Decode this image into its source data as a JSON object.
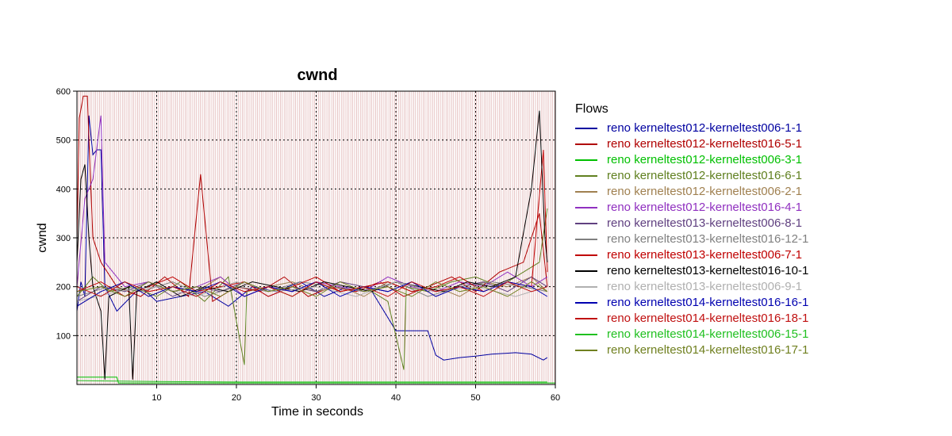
{
  "chart_data": {
    "type": "line",
    "title": "cwnd",
    "xlabel": "Time in seconds",
    "ylabel": "cwnd",
    "xlim": [
      0,
      60
    ],
    "ylim": [
      0,
      600
    ],
    "x_ticks": [
      10,
      20,
      30,
      40,
      50,
      60
    ],
    "y_ticks": [
      100,
      200,
      300,
      400,
      500,
      600
    ],
    "grid": true,
    "legend_title": "Flows",
    "legend_position": "right",
    "series": [
      {
        "name": "reno kerneltest012-kerneltest006-1-1",
        "color": "#0000a0",
        "points": [
          [
            0,
            150
          ],
          [
            0.5,
            210
          ],
          [
            1,
            180
          ],
          [
            1.5,
            550
          ],
          [
            2,
            470
          ],
          [
            2.5,
            480
          ],
          [
            3,
            480
          ],
          [
            3.5,
            200
          ],
          [
            5,
            150
          ],
          [
            8,
            200
          ],
          [
            10,
            170
          ],
          [
            13,
            180
          ],
          [
            16,
            190
          ],
          [
            19,
            160
          ],
          [
            22,
            200
          ],
          [
            25,
            190
          ],
          [
            28,
            210
          ],
          [
            31,
            180
          ],
          [
            34,
            200
          ],
          [
            37,
            190
          ],
          [
            40,
            110
          ],
          [
            42,
            110
          ],
          [
            44,
            110
          ],
          [
            45,
            60
          ],
          [
            46,
            50
          ],
          [
            48,
            55
          ],
          [
            50,
            58
          ],
          [
            52,
            62
          ],
          [
            55,
            65
          ],
          [
            57,
            62
          ],
          [
            58.5,
            50
          ],
          [
            59,
            55
          ]
        ]
      },
      {
        "name": "reno kerneltest012-kerneltest016-5-1",
        "color": "#b00000",
        "points": [
          [
            0,
            300
          ],
          [
            0.3,
            545
          ],
          [
            0.8,
            590
          ],
          [
            1.3,
            590
          ],
          [
            1.5,
            500
          ],
          [
            2,
            300
          ],
          [
            3,
            250
          ],
          [
            5,
            200
          ],
          [
            8,
            180
          ],
          [
            11,
            220
          ],
          [
            14,
            180
          ],
          [
            15.5,
            430
          ],
          [
            17,
            170
          ],
          [
            20,
            200
          ],
          [
            23,
            190
          ],
          [
            26,
            220
          ],
          [
            29,
            180
          ],
          [
            32,
            200
          ],
          [
            35,
            190
          ],
          [
            38,
            210
          ],
          [
            41,
            180
          ],
          [
            44,
            200
          ],
          [
            47,
            220
          ],
          [
            50,
            190
          ],
          [
            53,
            230
          ],
          [
            56,
            250
          ],
          [
            58,
            350
          ],
          [
            59,
            200
          ]
        ]
      },
      {
        "name": "reno kerneltest012-kerneltest006-3-1",
        "color": "#00c000",
        "points": [
          [
            0,
            15
          ],
          [
            5,
            15
          ],
          [
            5.2,
            3
          ],
          [
            60,
            3
          ]
        ]
      },
      {
        "name": "reno kerneltest012-kerneltest016-6-1",
        "color": "#608020",
        "points": [
          [
            0,
            180
          ],
          [
            2,
            220
          ],
          [
            4,
            190
          ],
          [
            7,
            200
          ],
          [
            10,
            180
          ],
          [
            13,
            210
          ],
          [
            16,
            170
          ],
          [
            19,
            220
          ],
          [
            21,
            40
          ],
          [
            21.3,
            190
          ],
          [
            24,
            200
          ],
          [
            27,
            180
          ],
          [
            30,
            210
          ],
          [
            33,
            190
          ],
          [
            36,
            200
          ],
          [
            39,
            170
          ],
          [
            41,
            30
          ],
          [
            41.3,
            200
          ],
          [
            44,
            190
          ],
          [
            47,
            210
          ],
          [
            50,
            220
          ],
          [
            53,
            200
          ],
          [
            56,
            230
          ],
          [
            58,
            250
          ],
          [
            59,
            360
          ]
        ]
      },
      {
        "name": "reno kerneltest012-kerneltest006-2-1",
        "color": "#a08050",
        "points": [
          [
            0,
            160
          ],
          [
            3,
            190
          ],
          [
            6,
            210
          ],
          [
            9,
            180
          ],
          [
            12,
            200
          ],
          [
            15,
            190
          ],
          [
            18,
            220
          ],
          [
            21,
            180
          ],
          [
            24,
            200
          ],
          [
            27,
            210
          ],
          [
            30,
            190
          ],
          [
            33,
            200
          ],
          [
            36,
            180
          ],
          [
            39,
            210
          ],
          [
            42,
            190
          ],
          [
            45,
            200
          ],
          [
            48,
            180
          ],
          [
            51,
            210
          ],
          [
            54,
            200
          ],
          [
            57,
            220
          ],
          [
            59,
            190
          ]
        ]
      },
      {
        "name": "reno kerneltest012-kerneltest016-4-1",
        "color": "#9030c0",
        "points": [
          [
            0,
            200
          ],
          [
            1,
            380
          ],
          [
            2,
            420
          ],
          [
            3,
            550
          ],
          [
            3.5,
            250
          ],
          [
            6,
            200
          ],
          [
            9,
            210
          ],
          [
            12,
            190
          ],
          [
            15,
            200
          ],
          [
            18,
            220
          ],
          [
            21,
            180
          ],
          [
            24,
            200
          ],
          [
            27,
            190
          ],
          [
            30,
            210
          ],
          [
            33,
            200
          ],
          [
            36,
            190
          ],
          [
            39,
            220
          ],
          [
            42,
            200
          ],
          [
            45,
            190
          ],
          [
            48,
            210
          ],
          [
            51,
            200
          ],
          [
            54,
            230
          ],
          [
            57,
            200
          ],
          [
            59,
            220
          ]
        ]
      },
      {
        "name": "reno kerneltest013-kerneltest006-8-1",
        "color": "#604080",
        "points": [
          [
            0,
            170
          ],
          [
            3,
            200
          ],
          [
            6,
            190
          ],
          [
            9,
            210
          ],
          [
            12,
            180
          ],
          [
            15,
            200
          ],
          [
            18,
            190
          ],
          [
            21,
            210
          ],
          [
            24,
            180
          ],
          [
            27,
            200
          ],
          [
            30,
            190
          ],
          [
            33,
            210
          ],
          [
            36,
            200
          ],
          [
            39,
            190
          ],
          [
            42,
            210
          ],
          [
            45,
            180
          ],
          [
            48,
            200
          ],
          [
            51,
            210
          ],
          [
            54,
            190
          ],
          [
            57,
            220
          ],
          [
            59,
            200
          ]
        ]
      },
      {
        "name": "reno kerneltest013-kerneltest016-12-1",
        "color": "#808080",
        "points": [
          [
            0,
            180
          ],
          [
            4,
            200
          ],
          [
            8,
            190
          ],
          [
            12,
            210
          ],
          [
            16,
            180
          ],
          [
            20,
            200
          ],
          [
            24,
            190
          ],
          [
            28,
            210
          ],
          [
            32,
            200
          ],
          [
            36,
            190
          ],
          [
            40,
            210
          ],
          [
            44,
            180
          ],
          [
            48,
            200
          ],
          [
            52,
            210
          ],
          [
            56,
            200
          ],
          [
            59,
            190
          ]
        ]
      },
      {
        "name": "reno kerneltest013-kerneltest006-7-1",
        "color": "#c00000",
        "points": [
          [
            0,
            190
          ],
          [
            3,
            210
          ],
          [
            6,
            180
          ],
          [
            9,
            200
          ],
          [
            12,
            220
          ],
          [
            15,
            190
          ],
          [
            18,
            200
          ],
          [
            21,
            210
          ],
          [
            24,
            180
          ],
          [
            27,
            200
          ],
          [
            30,
            220
          ],
          [
            33,
            190
          ],
          [
            36,
            200
          ],
          [
            39,
            210
          ],
          [
            42,
            190
          ],
          [
            45,
            200
          ],
          [
            48,
            220
          ],
          [
            51,
            190
          ],
          [
            54,
            210
          ],
          [
            57,
            200
          ],
          [
            58.5,
            480
          ],
          [
            59,
            230
          ]
        ]
      },
      {
        "name": "reno kerneltest013-kerneltest016-10-1",
        "color": "#000000",
        "points": [
          [
            0,
            250
          ],
          [
            0.5,
            420
          ],
          [
            1,
            450
          ],
          [
            1.5,
            300
          ],
          [
            2,
            200
          ],
          [
            3,
            150
          ],
          [
            3.5,
            10
          ],
          [
            4,
            180
          ],
          [
            6.5,
            200
          ],
          [
            7,
            10
          ],
          [
            7.5,
            190
          ],
          [
            10,
            210
          ],
          [
            13,
            180
          ],
          [
            16,
            200
          ],
          [
            19,
            190
          ],
          [
            22,
            210
          ],
          [
            25,
            200
          ],
          [
            28,
            190
          ],
          [
            31,
            210
          ],
          [
            34,
            200
          ],
          [
            37,
            190
          ],
          [
            40,
            210
          ],
          [
            43,
            200
          ],
          [
            46,
            190
          ],
          [
            49,
            210
          ],
          [
            52,
            200
          ],
          [
            55,
            220
          ],
          [
            57,
            400
          ],
          [
            58,
            560
          ],
          [
            58.7,
            300
          ],
          [
            59,
            250
          ]
        ]
      },
      {
        "name": "reno kerneltest013-kerneltest006-9-1",
        "color": "#b0b0b0",
        "points": [
          [
            0,
            170
          ],
          [
            5,
            190
          ],
          [
            10,
            200
          ],
          [
            15,
            180
          ],
          [
            20,
            210
          ],
          [
            25,
            190
          ],
          [
            30,
            200
          ],
          [
            35,
            180
          ],
          [
            40,
            210
          ],
          [
            45,
            190
          ],
          [
            50,
            200
          ],
          [
            55,
            180
          ],
          [
            59,
            200
          ]
        ]
      },
      {
        "name": "reno kerneltest014-kerneltest016-16-1",
        "color": "#0000b0",
        "points": [
          [
            0,
            160
          ],
          [
            3,
            190
          ],
          [
            6,
            210
          ],
          [
            9,
            180
          ],
          [
            12,
            200
          ],
          [
            15,
            190
          ],
          [
            18,
            210
          ],
          [
            21,
            180
          ],
          [
            24,
            200
          ],
          [
            27,
            190
          ],
          [
            30,
            210
          ],
          [
            33,
            180
          ],
          [
            36,
            200
          ],
          [
            39,
            190
          ],
          [
            42,
            210
          ],
          [
            45,
            180
          ],
          [
            48,
            200
          ],
          [
            51,
            190
          ],
          [
            54,
            210
          ],
          [
            57,
            200
          ],
          [
            59,
            180
          ]
        ]
      },
      {
        "name": "reno kerneltest014-kerneltest016-18-1",
        "color": "#c01010",
        "points": [
          [
            0,
            200
          ],
          [
            3,
            180
          ],
          [
            6,
            210
          ],
          [
            9,
            190
          ],
          [
            12,
            200
          ],
          [
            15,
            180
          ],
          [
            18,
            210
          ],
          [
            21,
            190
          ],
          [
            24,
            200
          ],
          [
            27,
            180
          ],
          [
            30,
            210
          ],
          [
            33,
            190
          ],
          [
            36,
            200
          ],
          [
            39,
            180
          ],
          [
            42,
            210
          ],
          [
            45,
            190
          ],
          [
            48,
            200
          ],
          [
            51,
            180
          ],
          [
            54,
            210
          ],
          [
            57,
            190
          ],
          [
            59,
            200
          ]
        ]
      },
      {
        "name": "reno kerneltest014-kerneltest006-15-1",
        "color": "#20c020",
        "points": [
          [
            0,
            8
          ],
          [
            10,
            6
          ],
          [
            20,
            5
          ],
          [
            30,
            5
          ],
          [
            40,
            5
          ],
          [
            50,
            5
          ],
          [
            59,
            5
          ]
        ]
      },
      {
        "name": "reno kerneltest014-kerneltest016-17-1",
        "color": "#708020",
        "points": [
          [
            0,
            190
          ],
          [
            3,
            200
          ],
          [
            6,
            180
          ],
          [
            9,
            210
          ],
          [
            12,
            190
          ],
          [
            15,
            200
          ],
          [
            18,
            180
          ],
          [
            21,
            210
          ],
          [
            24,
            190
          ],
          [
            27,
            200
          ],
          [
            30,
            180
          ],
          [
            33,
            210
          ],
          [
            36,
            190
          ],
          [
            39,
            200
          ],
          [
            42,
            180
          ],
          [
            45,
            210
          ],
          [
            48,
            190
          ],
          [
            51,
            200
          ],
          [
            54,
            180
          ],
          [
            57,
            210
          ],
          [
            59,
            190
          ]
        ]
      }
    ]
  }
}
